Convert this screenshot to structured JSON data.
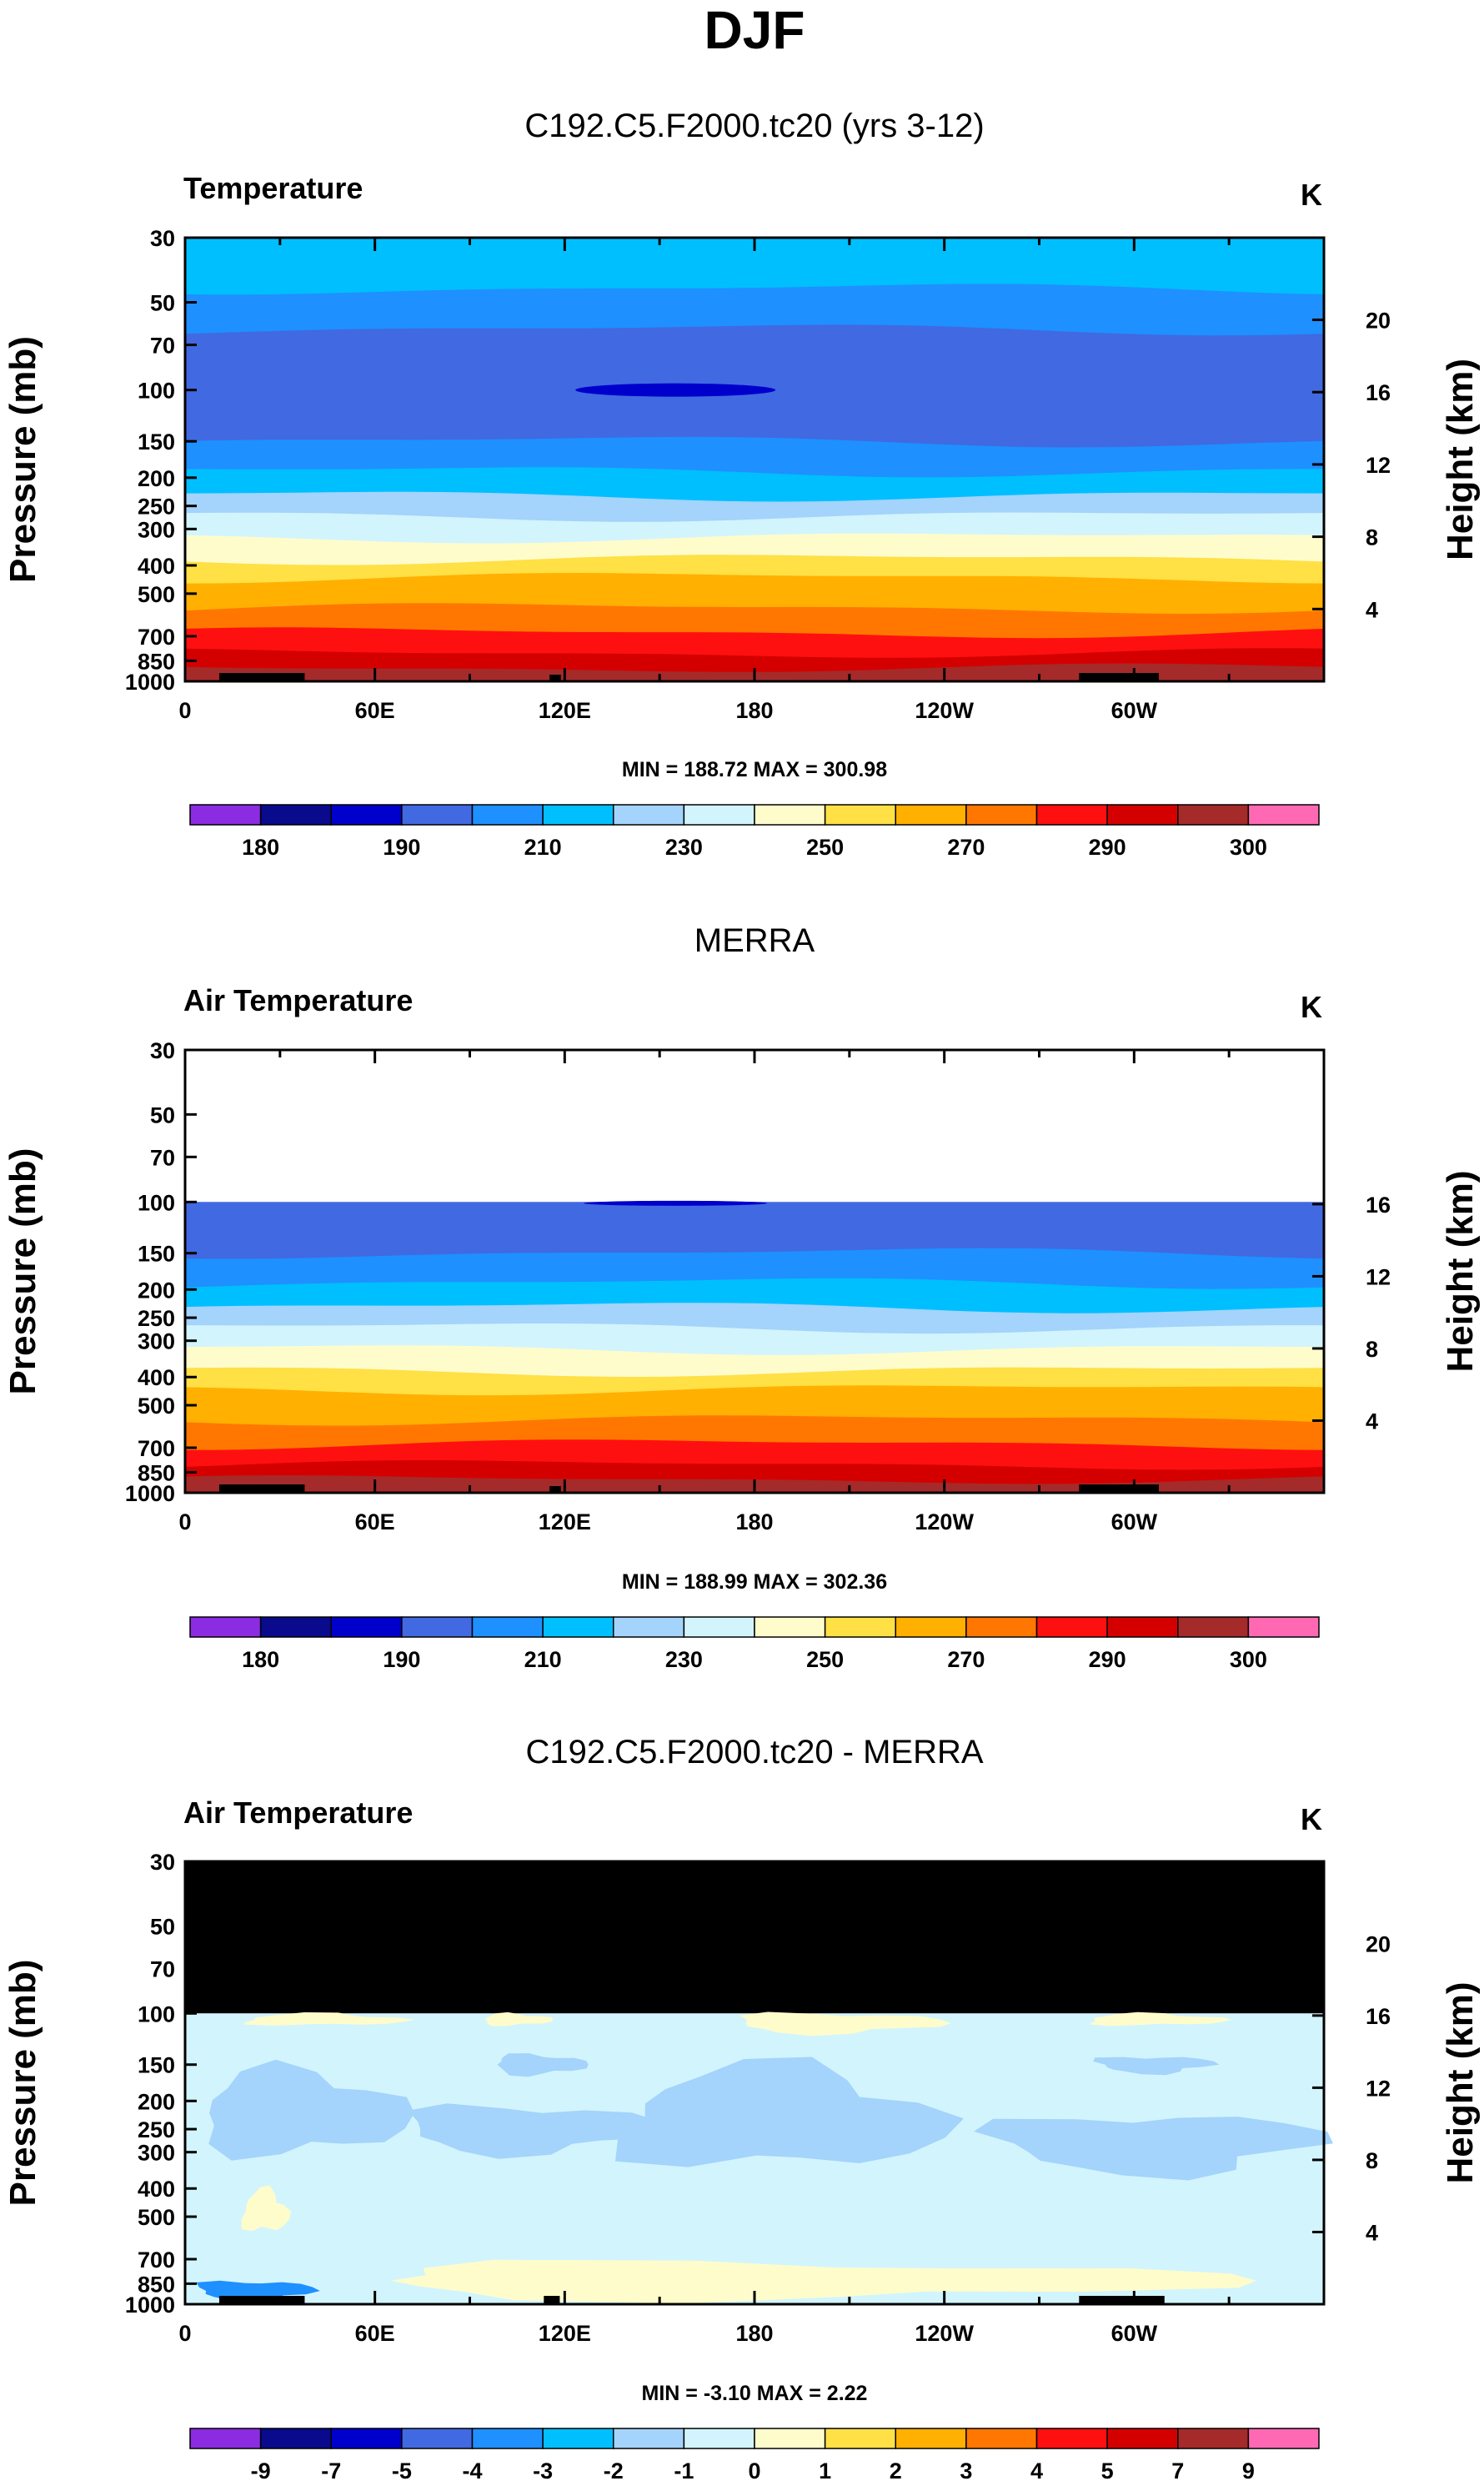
{
  "chart_data": {
    "type": "contour",
    "title": "DJF",
    "x_ticks": [
      "0",
      "60E",
      "120E",
      "180",
      "120W",
      "60W"
    ],
    "pressure_ticks": [
      "30",
      "50",
      "70",
      "100",
      "150",
      "200",
      "250",
      "300",
      "400",
      "500",
      "700",
      "850",
      "1000"
    ],
    "pressure_values": [
      30,
      50,
      70,
      100,
      150,
      200,
      250,
      300,
      400,
      500,
      700,
      850,
      1000
    ],
    "left_axis_label": "Pressure (mb)",
    "right_axis_label": "Height (km)",
    "panels": [
      {
        "subtitle": "C192.C5.F2000.tc20 (yrs 3-12)",
        "left_title": "Temperature",
        "units": "K",
        "minmax": "MIN = 188.72   MAX = 300.98",
        "height_ticks": [
          "20",
          "16",
          "12",
          "8",
          "4"
        ],
        "height_km": [
          20,
          16,
          12,
          8,
          4
        ],
        "colorbar_labels": [
          "180",
          "190",
          "210",
          "230",
          "250",
          "270",
          "290",
          "300"
        ],
        "colorbar_colors": [
          "#8b2be2",
          "#0a0a8c",
          "#0000cd",
          "#4169e1",
          "#1e90ff",
          "#00bfff",
          "#a4d3fb",
          "#d2f4fd",
          "#fffccc",
          "#ffe045",
          "#ffb000",
          "#ff7700",
          "#ff1010",
          "#d40000",
          "#a52a2a",
          "#ff69b4"
        ],
        "data_top_mb": 30,
        "bands_mb": [
          30,
          45,
          62,
          150,
          190,
          230,
          270,
          320,
          380,
          440,
          560,
          680,
          800,
          900,
          1000
        ],
        "bands_colors": [
          "#00bfff",
          "#1e90ff",
          "#4169e1",
          "#1e90ff",
          "#00bfff",
          "#a4d3fb",
          "#d2f4fd",
          "#fffccc",
          "#ffe045",
          "#ffb000",
          "#ff7700",
          "#ff1010",
          "#d40000",
          "#a52a2a"
        ]
      },
      {
        "subtitle": "MERRA",
        "left_title": "Air Temperature",
        "units": "K",
        "minmax": "MIN = 188.99   MAX = 302.36",
        "height_ticks": [
          "16",
          "12",
          "8",
          "4"
        ],
        "height_km": [
          16,
          12,
          8,
          4
        ],
        "colorbar_labels": [
          "180",
          "190",
          "210",
          "230",
          "250",
          "270",
          "290",
          "300"
        ],
        "colorbar_colors": [
          "#8b2be2",
          "#0a0a8c",
          "#0000cd",
          "#4169e1",
          "#1e90ff",
          "#00bfff",
          "#a4d3fb",
          "#d2f4fd",
          "#fffccc",
          "#ffe045",
          "#ffb000",
          "#ff7700",
          "#ff1010",
          "#d40000",
          "#a52a2a",
          "#ff69b4"
        ],
        "data_top_mb": 100,
        "bands_mb": [
          100,
          150,
          190,
          230,
          270,
          320,
          380,
          440,
          560,
          680,
          800,
          900,
          1000
        ],
        "bands_colors": [
          "#4169e1",
          "#1e90ff",
          "#00bfff",
          "#a4d3fb",
          "#d2f4fd",
          "#fffccc",
          "#ffe045",
          "#ffb000",
          "#ff7700",
          "#ff1010",
          "#d40000",
          "#a52a2a"
        ]
      },
      {
        "subtitle": "C192.C5.F2000.tc20 - MERRA",
        "left_title": "Air Temperature",
        "units": "K",
        "minmax": "MIN =  -3.10   MAX =   2.22",
        "height_ticks": [
          "20",
          "16",
          "12",
          "8",
          "4"
        ],
        "height_km": [
          20,
          16,
          12,
          8,
          4
        ],
        "colorbar_labels": [
          "-9",
          "-7",
          "-5",
          "-4",
          "-3",
          "-2",
          "-1",
          "0",
          "1",
          "2",
          "3",
          "4",
          "5",
          "7",
          "9"
        ],
        "colorbar_colors": [
          "#8b2be2",
          "#0a0a8c",
          "#0000cd",
          "#4169e1",
          "#1e90ff",
          "#00bfff",
          "#a4d3fb",
          "#d2f4fd",
          "#fffccc",
          "#ffe045",
          "#ffb000",
          "#ff7700",
          "#ff1010",
          "#d40000",
          "#a52a2a",
          "#ff69b4"
        ],
        "data_top_mb": 100,
        "masked_above_mb": 100,
        "background_color": "#d2f4fd",
        "negative_color": "#a4d3fb",
        "positive_color": "#fffccc",
        "strong_negative_color": "#1e90ff"
      }
    ]
  }
}
